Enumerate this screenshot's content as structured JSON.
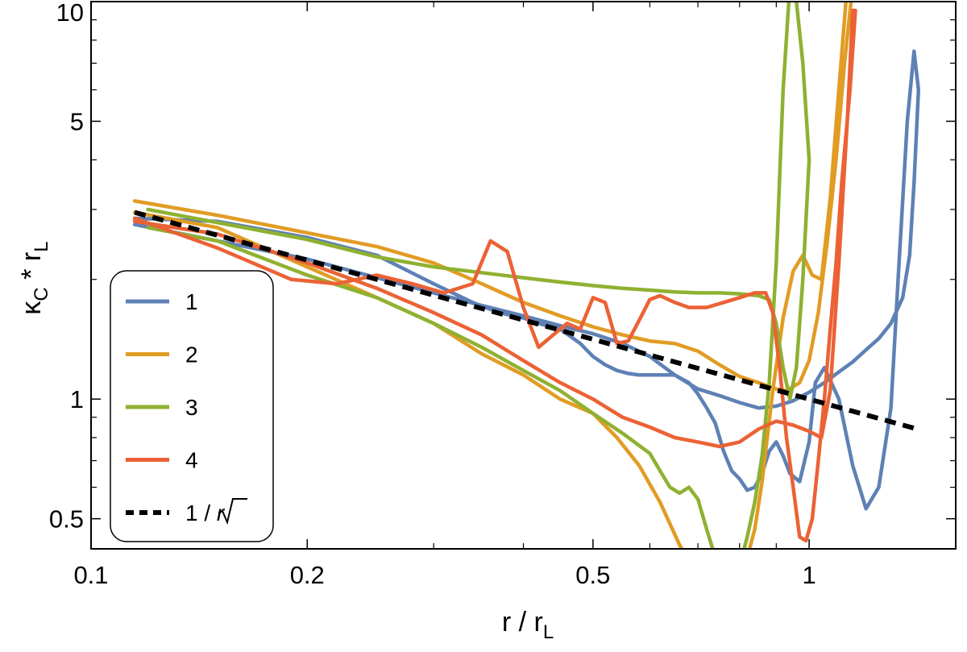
{
  "chart_data": {
    "type": "line",
    "xlabel": {
      "main": "r / r",
      "sub": "L"
    },
    "ylabel": {
      "main": "κ",
      "main_sub": "C",
      "mid": " * r",
      "sub": "L"
    },
    "xscale": "log",
    "yscale": "log",
    "xlim": [
      0.1,
      1.6
    ],
    "ylim": [
      0.42,
      10
    ],
    "x_ticks": [
      {
        "value": 0.1,
        "label": "0.1"
      },
      {
        "value": 0.2,
        "label": "0.2"
      },
      {
        "value": 0.5,
        "label": "0.5"
      },
      {
        "value": 1,
        "label": "1"
      }
    ],
    "x_minor_ticks": [
      0.3,
      0.4,
      0.6,
      0.7,
      0.8,
      0.9
    ],
    "y_ticks": [
      {
        "value": 0.5,
        "label": "0.5"
      },
      {
        "value": 1,
        "label": "1"
      },
      {
        "value": 5,
        "label": "5"
      },
      {
        "value": 10,
        "label": "10"
      }
    ],
    "y_minor_ticks": [
      0.6,
      0.7,
      0.8,
      0.9,
      2,
      3,
      4,
      6,
      7,
      8,
      9
    ],
    "grid": false,
    "legend_position": "bottom-left",
    "series": [
      {
        "name": "1",
        "color": "#5E81B5",
        "dash": false,
        "x": [
          0.115,
          0.15,
          0.2,
          0.25,
          0.3,
          0.35,
          0.4,
          0.45,
          0.5,
          0.55,
          0.6,
          0.65,
          0.7,
          0.75,
          0.8,
          0.85,
          0.9,
          0.95,
          1.0,
          1.05,
          1.1,
          1.15,
          1.2,
          1.25,
          1.3,
          1.35,
          1.38,
          1.4,
          1.42,
          1.4,
          1.37,
          1.33,
          1.3,
          1.25,
          1.2,
          1.15,
          1.1,
          1.05,
          1.02,
          1.0,
          0.97,
          0.94,
          0.92,
          0.9,
          0.88,
          0.86,
          0.84,
          0.82,
          0.8,
          0.78,
          0.76,
          0.74,
          0.72,
          0.7,
          0.68,
          0.65,
          0.62,
          0.6,
          0.58,
          0.56,
          0.54,
          0.52,
          0.5,
          0.48,
          0.45,
          0.42,
          0.4,
          0.37,
          0.34,
          0.3,
          0.25,
          0.2,
          0.15,
          0.115
        ],
        "y": [
          2.75,
          2.5,
          2.25,
          2.02,
          1.85,
          1.72,
          1.62,
          1.53,
          1.46,
          1.38,
          1.28,
          1.15,
          1.06,
          1.02,
          0.98,
          0.95,
          0.96,
          0.99,
          1.04,
          1.1,
          1.17,
          1.24,
          1.33,
          1.42,
          1.55,
          1.8,
          2.3,
          3.5,
          6.0,
          7.5,
          5.0,
          2.0,
          0.95,
          0.6,
          0.53,
          0.68,
          1.0,
          1.2,
          1.1,
          0.78,
          0.62,
          0.65,
          0.72,
          0.78,
          0.74,
          0.65,
          0.6,
          0.59,
          0.63,
          0.66,
          0.74,
          0.87,
          0.95,
          1.03,
          1.1,
          1.15,
          1.15,
          1.15,
          1.15,
          1.16,
          1.18,
          1.22,
          1.28,
          1.38,
          1.5,
          1.55,
          1.6,
          1.65,
          1.75,
          1.95,
          2.3,
          2.55,
          2.8,
          2.85
        ]
      },
      {
        "name": "2",
        "color": "#E19C24",
        "dash": false,
        "x": [
          0.115,
          0.15,
          0.2,
          0.25,
          0.3,
          0.35,
          0.4,
          0.45,
          0.5,
          0.55,
          0.6,
          0.65,
          0.7,
          0.75,
          0.8,
          0.85,
          0.9,
          0.93,
          0.97,
          1.0,
          1.03,
          1.06,
          1.09,
          1.12,
          1.15,
          1.13,
          1.1,
          1.07,
          1.04,
          1.01,
          0.98,
          0.95,
          0.92,
          0.89,
          0.86,
          0.84,
          0.82,
          0.8,
          0.78,
          0.76,
          0.74,
          0.72,
          0.7,
          0.68,
          0.66,
          0.62,
          0.58,
          0.54,
          0.5,
          0.45,
          0.4,
          0.35,
          0.3,
          0.25,
          0.2,
          0.15,
          0.115
        ],
        "y": [
          3.15,
          2.9,
          2.62,
          2.42,
          2.2,
          1.95,
          1.75,
          1.62,
          1.52,
          1.45,
          1.4,
          1.38,
          1.32,
          1.22,
          1.14,
          1.1,
          1.06,
          1.05,
          1.1,
          1.25,
          1.65,
          2.5,
          4.0,
          7.0,
          11.0,
          11.0,
          6.0,
          3.2,
          2.0,
          2.05,
          2.3,
          2.1,
          1.6,
          1.05,
          0.62,
          0.47,
          0.4,
          0.38,
          0.38,
          0.38,
          0.38,
          0.38,
          0.38,
          0.39,
          0.43,
          0.55,
          0.68,
          0.8,
          0.92,
          1.0,
          1.15,
          1.3,
          1.55,
          1.8,
          2.15,
          2.7,
          2.95
        ]
      },
      {
        "name": "3",
        "color": "#8FB131",
        "dash": false,
        "x": [
          0.12,
          0.15,
          0.2,
          0.25,
          0.3,
          0.35,
          0.4,
          0.45,
          0.5,
          0.55,
          0.6,
          0.65,
          0.7,
          0.75,
          0.8,
          0.85,
          0.88,
          0.9,
          0.92,
          0.94,
          0.96,
          0.98,
          1.0,
          0.98,
          0.96,
          0.94,
          0.92,
          0.9,
          0.88,
          0.86,
          0.84,
          0.82,
          0.8,
          0.79,
          0.78,
          0.77,
          0.76,
          0.75,
          0.74,
          0.72,
          0.7,
          0.68,
          0.66,
          0.64,
          0.62,
          0.6,
          0.55,
          0.5,
          0.45,
          0.4,
          0.35,
          0.3,
          0.25,
          0.2,
          0.15,
          0.12
        ],
        "y": [
          3.0,
          2.78,
          2.52,
          2.28,
          2.15,
          2.08,
          2.02,
          1.97,
          1.93,
          1.9,
          1.88,
          1.86,
          1.85,
          1.85,
          1.84,
          1.82,
          1.78,
          1.55,
          1.2,
          1.0,
          1.2,
          2.0,
          4.0,
          7.0,
          10.0,
          11.0,
          6.0,
          2.2,
          1.1,
          0.72,
          0.55,
          0.45,
          0.38,
          0.38,
          0.38,
          0.38,
          0.38,
          0.38,
          0.4,
          0.47,
          0.56,
          0.6,
          0.58,
          0.6,
          0.66,
          0.73,
          0.82,
          0.92,
          1.05,
          1.18,
          1.35,
          1.55,
          1.8,
          2.05,
          2.5,
          2.7
        ]
      },
      {
        "name": "4",
        "color": "#EB6235",
        "dash": false,
        "x": [
          0.115,
          0.15,
          0.19,
          0.22,
          0.25,
          0.28,
          0.31,
          0.34,
          0.36,
          0.38,
          0.4,
          0.42,
          0.44,
          0.46,
          0.48,
          0.5,
          0.52,
          0.54,
          0.56,
          0.58,
          0.6,
          0.62,
          0.65,
          0.68,
          0.72,
          0.76,
          0.8,
          0.84,
          0.87,
          0.89,
          0.91,
          0.93,
          0.95,
          0.97,
          0.99,
          1.01,
          1.03,
          1.05,
          1.07,
          1.09,
          1.11,
          1.14,
          1.16,
          1.15,
          1.13,
          1.1,
          1.07,
          1.04,
          1.0,
          0.95,
          0.9,
          0.85,
          0.8,
          0.75,
          0.7,
          0.65,
          0.6,
          0.55,
          0.5,
          0.45,
          0.4,
          0.35,
          0.3,
          0.25,
          0.2,
          0.15,
          0.115
        ],
        "y": [
          2.85,
          2.4,
          2.0,
          1.95,
          2.05,
          1.95,
          1.85,
          1.95,
          2.5,
          2.35,
          1.7,
          1.35,
          1.45,
          1.55,
          1.5,
          1.8,
          1.75,
          1.38,
          1.4,
          1.58,
          1.78,
          1.82,
          1.75,
          1.7,
          1.7,
          1.75,
          1.8,
          1.85,
          1.85,
          1.65,
          1.2,
          0.8,
          0.6,
          0.45,
          0.44,
          0.5,
          0.7,
          1.0,
          1.5,
          2.2,
          3.5,
          6.0,
          9.5,
          9.5,
          5.0,
          2.2,
          1.05,
          0.8,
          0.83,
          0.86,
          0.88,
          0.84,
          0.78,
          0.76,
          0.78,
          0.8,
          0.85,
          0.9,
          1.0,
          1.1,
          1.25,
          1.45,
          1.65,
          1.9,
          2.2,
          2.6,
          2.8
        ]
      },
      {
        "name": "1 / √r",
        "legend_label_prefix": "1 / ",
        "legend_label_root": "r",
        "color": "#000000",
        "dash": true,
        "x": [
          0.115,
          1.4
        ],
        "y": [
          2.95,
          0.845
        ]
      }
    ]
  }
}
